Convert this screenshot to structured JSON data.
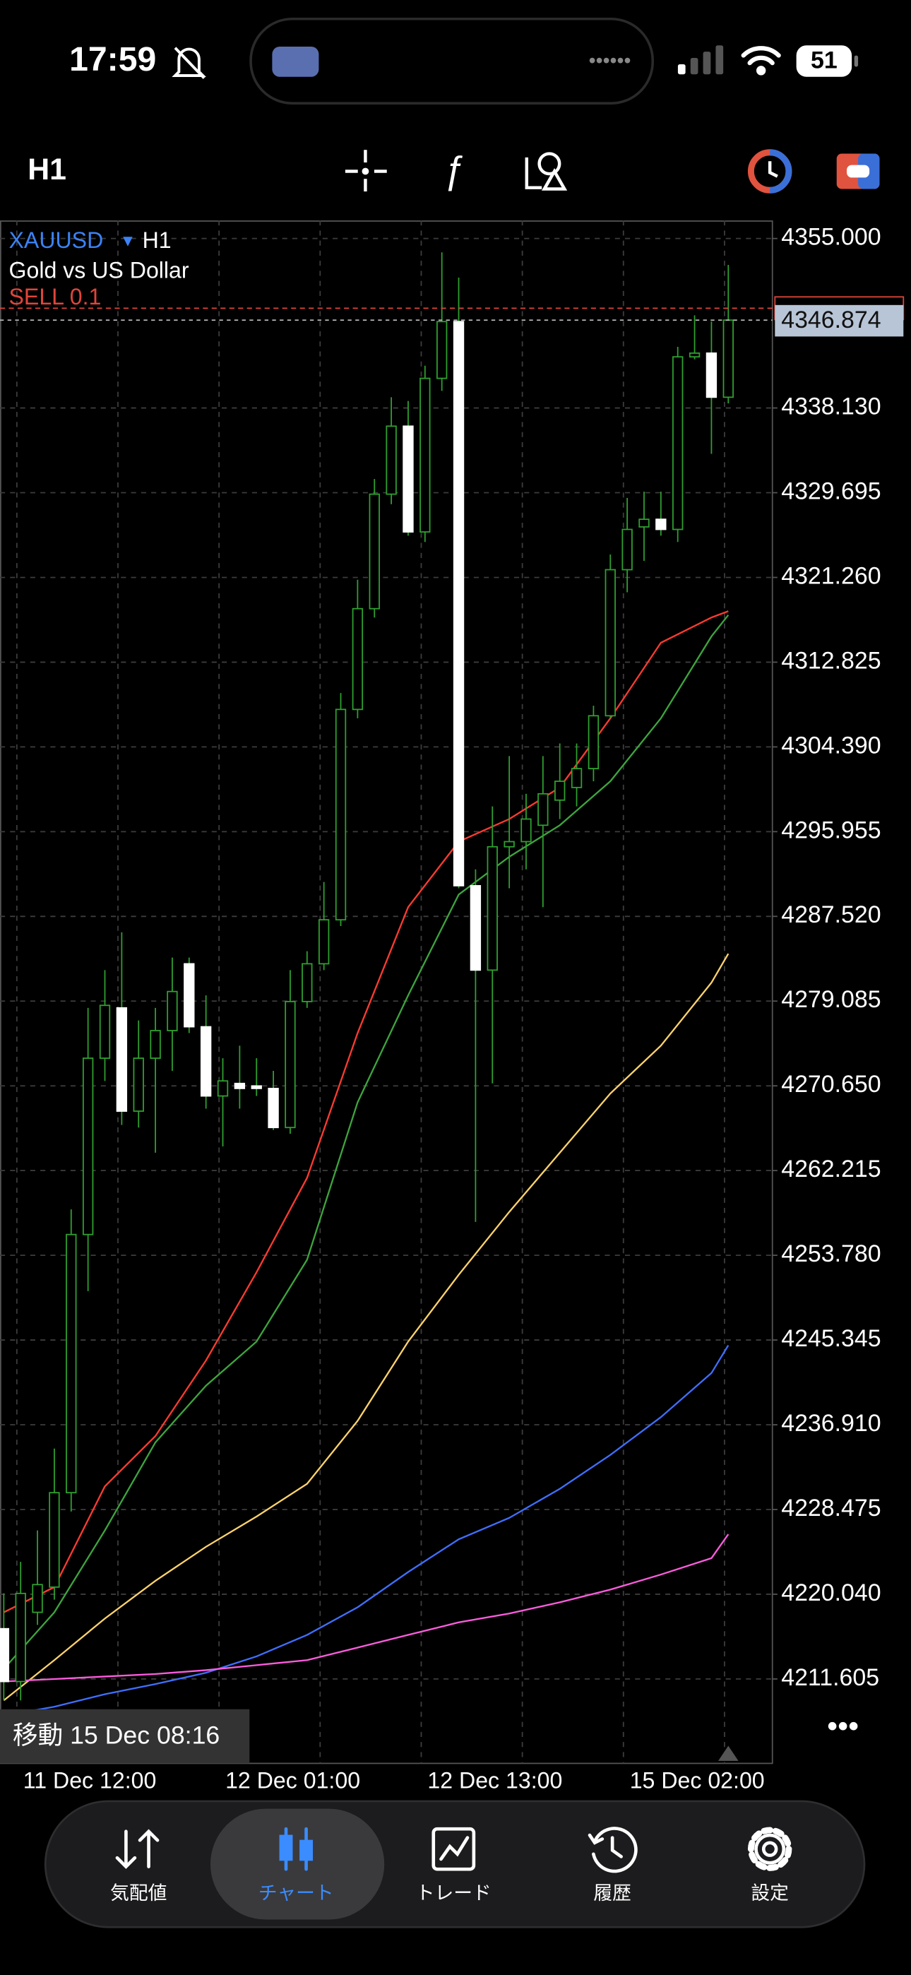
{
  "status_bar": {
    "time": "17:59",
    "battery": "51"
  },
  "toolbar": {
    "timeframe": "H1"
  },
  "chart": {
    "type": "candlestick",
    "symbol": "XAUUSD",
    "timeframe": "H1",
    "description": "Gold vs US Dollar",
    "order_label": "SELL 0.1",
    "order_price": 4348.06,
    "current_price": 4346.874,
    "cursor_label": "移動 15 Dec 08:16",
    "ylim": [
      4203.2,
      4356.8
    ],
    "yticks": [
      {
        "value": 4355,
        "label": "4355.000"
      },
      {
        "value": 4338.13,
        "label": "4338.130"
      },
      {
        "value": 4329.695,
        "label": "4329.695"
      },
      {
        "value": 4321.26,
        "label": "4321.260"
      },
      {
        "value": 4312.825,
        "label": "4312.825"
      },
      {
        "value": 4304.39,
        "label": "4304.390"
      },
      {
        "value": 4295.955,
        "label": "4295.955"
      },
      {
        "value": 4287.52,
        "label": "4287.520"
      },
      {
        "value": 4279.085,
        "label": "4279.085"
      },
      {
        "value": 4270.65,
        "label": "4270.650"
      },
      {
        "value": 4262.215,
        "label": "4262.215"
      },
      {
        "value": 4253.78,
        "label": "4253.780"
      },
      {
        "value": 4245.345,
        "label": "4245.345"
      },
      {
        "value": 4236.91,
        "label": "4236.910"
      },
      {
        "value": 4228.475,
        "label": "4228.475"
      },
      {
        "value": 4220.04,
        "label": "4220.040"
      },
      {
        "value": 4211.605,
        "label": "4211.605"
      }
    ],
    "grid": true,
    "bull_color": "#2fa02f",
    "bear_color": "#ffffff",
    "categories": [
      null,
      "11 Dec 12:00",
      null,
      null,
      null,
      null,
      null,
      null,
      null,
      null,
      null,
      null,
      null,
      "12 Dec 01:00",
      null,
      null,
      null,
      null,
      null,
      null,
      null,
      null,
      null,
      null,
      null,
      "12 Dec 13:00",
      null,
      null,
      null,
      null,
      null,
      null,
      null,
      null,
      null,
      null,
      null,
      "15 Dec 02:00",
      null,
      null,
      null,
      null,
      null,
      null
    ],
    "open": [
      4216.61,
      4211.35,
      4218.24,
      4220.75,
      4230.15,
      4255.85,
      4273.4,
      4278.41,
      4268.13,
      4273.4,
      4276.15,
      4282.8,
      4276.53,
      4269.64,
      4270.89,
      4270.64,
      4270.39,
      4266.5,
      4279.04,
      4282.8,
      4287.18,
      4308.12,
      4318.15,
      4329.55,
      4336.32,
      4325.79,
      4341.08,
      4346.73,
      4290.57,
      4282.17,
      4294.45,
      4294.96,
      4296.59,
      4299.09,
      4300.35,
      4302.23,
      4307.49,
      4322.03,
      4326.29,
      4327.05,
      4326.04,
      4343.22,
      4343.59,
      4339.2
    ],
    "high": [
      4220.12,
      4223.26,
      4226.39,
      4234.54,
      4258.35,
      4278.41,
      4282.17,
      4285.93,
      4277.16,
      4278.41,
      4283.42,
      4283.42,
      4279.66,
      4273.4,
      4274.65,
      4273.4,
      4272.14,
      4282.17,
      4284.05,
      4290.94,
      4309.75,
      4321.03,
      4331.06,
      4339.2,
      4338.83,
      4342.34,
      4353.62,
      4351.11,
      4292.2,
      4298.47,
      4303.48,
      4299.72,
      4303.48,
      4304.73,
      4304.73,
      4308.49,
      4323.54,
      4329.18,
      4329.8,
      4329.8,
      4344.22,
      4347.35,
      4346.73,
      4352.37
    ],
    "low": [
      4209.47,
      4209.47,
      4216.99,
      4219.5,
      4228.27,
      4250.21,
      4271.14,
      4266.75,
      4266.5,
      4263.99,
      4272.14,
      4275.9,
      4268.38,
      4264.62,
      4268.38,
      4269.64,
      4266.25,
      4265.87,
      4278.41,
      4282.17,
      4286.56,
      4307.24,
      4317.27,
      4328.55,
      4325.42,
      4324.79,
      4339.83,
      4290.32,
      4257.1,
      4270.89,
      4290.32,
      4292.2,
      4288.44,
      4297.21,
      4298.47,
      4300.97,
      4307.24,
      4319.78,
      4322.91,
      4325.42,
      4324.79,
      4342.97,
      4333.56,
      4338.58
    ],
    "close": [
      4211.35,
      4220.12,
      4221.0,
      4230.15,
      4255.85,
      4273.4,
      4278.66,
      4268.13,
      4273.4,
      4276.15,
      4280.04,
      4276.53,
      4269.64,
      4271.14,
      4270.39,
      4270.39,
      4266.5,
      4279.04,
      4282.8,
      4287.18,
      4308.12,
      4318.15,
      4329.55,
      4336.32,
      4325.79,
      4341.08,
      4346.73,
      4290.57,
      4282.17,
      4294.45,
      4294.96,
      4297.21,
      4299.72,
      4300.97,
      4302.23,
      4307.49,
      4322.03,
      4326.04,
      4327.05,
      4326.04,
      4343.22,
      4343.59,
      4339.2,
      4346.874
    ],
    "ma_x": [
      0,
      3,
      6,
      9,
      12,
      15,
      18,
      21,
      24,
      27,
      30,
      33,
      36,
      39,
      42,
      43
    ],
    "moving_averages": [
      {
        "color": "#ff3b30",
        "values": [
          4218.24,
          4220.75,
          4230.78,
          4235.79,
          4243.31,
          4252.09,
          4261.49,
          4275.9,
          4288.44,
          4294.96,
          4297.21,
          4300.35,
          4307.24,
          4314.76,
          4317.27,
          4317.9
        ]
      },
      {
        "color": "#3da53d",
        "values": [
          4212.6,
          4218.24,
          4226.39,
          4235.16,
          4240.8,
          4245.19,
          4253.34,
          4269.01,
          4279.66,
          4289.69,
          4293.45,
          4296.59,
          4300.97,
          4307.24,
          4315.39,
          4317.52
        ]
      },
      {
        "color": "#ffd36b",
        "values": [
          4209.47,
          4213.48,
          4217.62,
          4221.38,
          4224.76,
          4227.77,
          4231.03,
          4237.3,
          4245.19,
          4251.84,
          4258.1,
          4263.99,
          4269.89,
          4274.65,
          4280.92,
          4283.8
        ]
      },
      {
        "color": "#3f6fff",
        "values": [
          4207.96,
          4208.84,
          4210.09,
          4211.1,
          4212.22,
          4213.85,
          4215.99,
          4218.74,
          4222.25,
          4225.51,
          4227.64,
          4230.53,
          4233.91,
          4237.67,
          4242.06,
          4244.82
        ]
      },
      {
        "color": "#ff5ce0",
        "values": [
          4211.35,
          4211.6,
          4211.85,
          4212.1,
          4212.48,
          4212.98,
          4213.48,
          4214.73,
          4215.99,
          4217.24,
          4218.12,
          4219.24,
          4220.5,
          4222.0,
          4223.63,
          4226.01
        ]
      }
    ]
  },
  "nav": {
    "selected": 1,
    "items": [
      {
        "label": "気配値"
      },
      {
        "label": "チャート"
      },
      {
        "label": "トレード"
      },
      {
        "label": "履歴"
      },
      {
        "label": "設定"
      }
    ]
  }
}
